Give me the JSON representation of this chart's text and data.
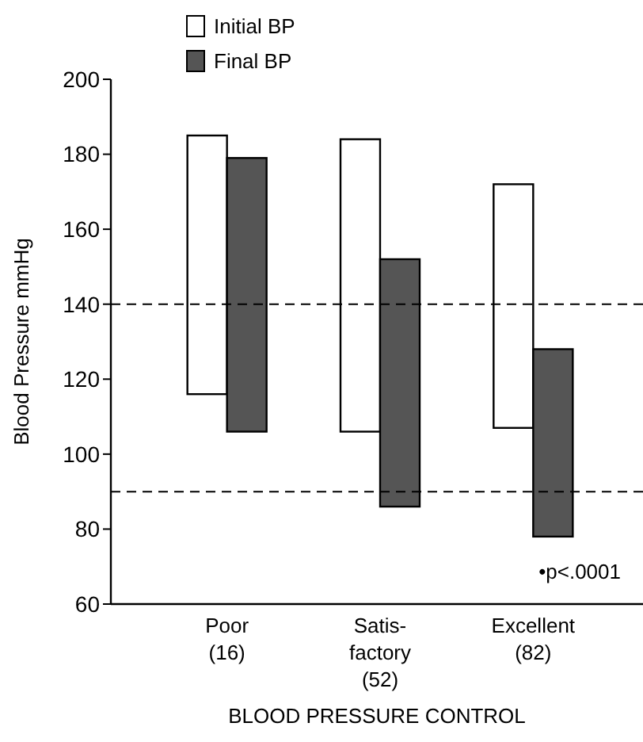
{
  "chart_data": {
    "type": "bar",
    "xlabel": "BLOOD PRESSURE CONTROL",
    "ylabel": "Blood Pressure mmHg",
    "categories": [
      "Poor\n(16)",
      "Satis-\nfactory\n(52)",
      "Excellent\n(82)"
    ],
    "series": [
      {
        "name": "Initial BP",
        "color": "#ffffff",
        "base": [
          116,
          106,
          107
        ],
        "values": [
          69,
          78,
          65
        ]
      },
      {
        "name": "Final BP",
        "color": "#555555",
        "base": [
          106,
          86,
          78
        ],
        "values": [
          73,
          66,
          50
        ]
      }
    ],
    "ylim": [
      60,
      200
    ],
    "yticks": [
      60,
      80,
      100,
      120,
      140,
      160,
      180,
      200
    ],
    "ref_lines": [
      {
        "axis": "y",
        "value": 140,
        "line_style": "dashed"
      },
      {
        "axis": "y",
        "value": 90,
        "line_style": "dashed"
      }
    ],
    "annotations": [
      "•p<.0001"
    ],
    "legend": "top left",
    "grid": false
  }
}
